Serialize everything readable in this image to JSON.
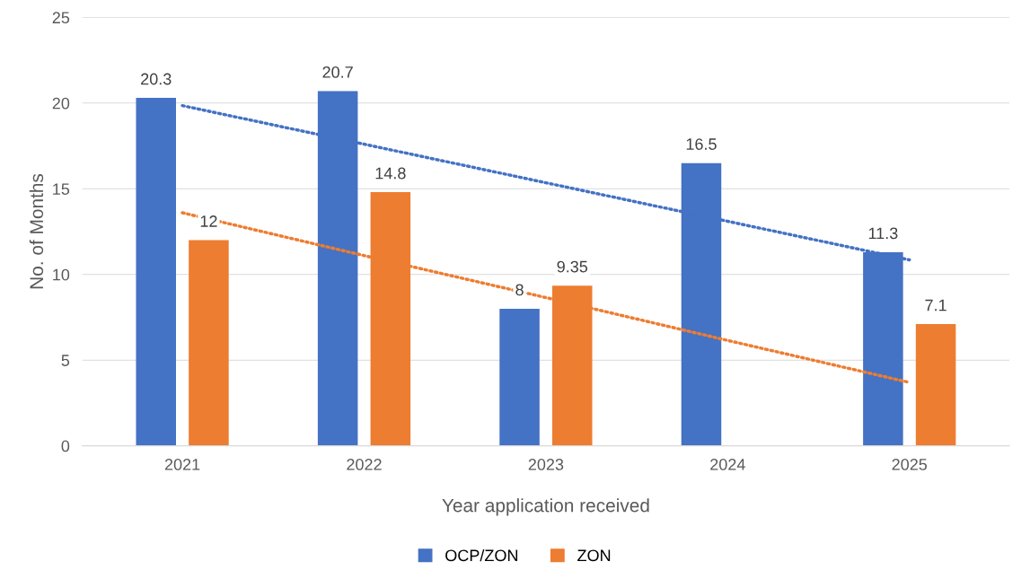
{
  "chart_data": {
    "type": "bar",
    "xlabel": "Year application received",
    "ylabel": "No. of Months",
    "categories": [
      "2021",
      "2022",
      "2023",
      "2024",
      "2025"
    ],
    "series": [
      {
        "name": "OCP/ZON",
        "color": "#4472c4",
        "values": [
          20.3,
          20.7,
          8,
          16.5,
          11.3
        ],
        "value_labels": [
          "20.3",
          "20.7",
          "8",
          "16.5",
          "11.3"
        ]
      },
      {
        "name": "ZON",
        "color": "#ed7d31",
        "values": [
          12,
          14.8,
          9.35,
          null,
          7.1
        ],
        "value_labels": [
          "12",
          "14.8",
          "9.35",
          null,
          "7.1"
        ]
      },
      {
        "type": "line",
        "color": "#4472c4",
        "line_style": "dotted",
        "values": [
          19.85,
          17.6,
          15.35,
          13.1,
          10.85
        ]
      },
      {
        "type": "line",
        "color": "#ed7d31",
        "line_style": "dotted",
        "values": [
          13.6,
          11.1,
          8.65,
          6.15,
          3.7
        ]
      }
    ],
    "ylim": [
      0,
      25
    ],
    "yticks": [
      0,
      5,
      10,
      15,
      20,
      25
    ],
    "grid": "y",
    "legend": "bottom"
  }
}
